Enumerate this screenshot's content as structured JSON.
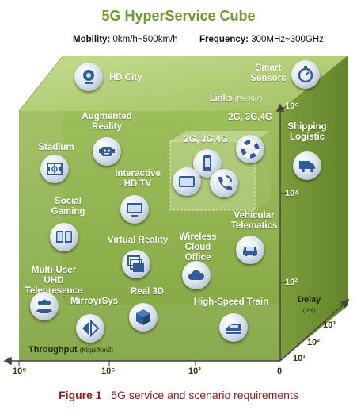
{
  "title": "5G HyperService Cube",
  "mobility": {
    "label": "Mobility:",
    "value": "0km/h~500km/h"
  },
  "frequency": {
    "label": "Frequency:",
    "value": "300MHz~300GHz"
  },
  "axes": {
    "links": {
      "label": "Links",
      "unit": "(Per Km²)",
      "ticks": [
        "10⁶",
        "10⁴",
        "10²"
      ]
    },
    "throughput": {
      "label": "Throughput",
      "unit": "(Kbps/Km2)",
      "ticks": [
        "10⁹",
        "10⁶",
        "10³",
        "0"
      ]
    },
    "delay": {
      "label": "Delay",
      "unit": "(ms)",
      "ticks": [
        "10³",
        "10²",
        "10¹"
      ]
    }
  },
  "services": [
    {
      "id": "hd-city",
      "label": "HD City",
      "icon": "webcam-icon"
    },
    {
      "id": "smart-sensors",
      "label": "Smart Sensors",
      "icon": "stopwatch-icon"
    },
    {
      "id": "augmented-reality",
      "label": "Augmented Reality",
      "icon": "robot-icon"
    },
    {
      "id": "2g3g4g-top",
      "label": "2G, 3G,4G",
      "icon": "lifebuoy-icon"
    },
    {
      "id": "shipping-logistic",
      "label": "Shipping Logistic",
      "icon": "truck-icon"
    },
    {
      "id": "stadium",
      "label": "Stadium",
      "icon": "field-icon"
    },
    {
      "id": "2g3g4g-inner",
      "label": "2G, 3G,4G",
      "icon": "devices-icon"
    },
    {
      "id": "interactive-hdtv",
      "label": "Interactive HD TV",
      "icon": "tv-icon"
    },
    {
      "id": "social-gaming",
      "label": "Social Gaming",
      "icon": "tablets-icon"
    },
    {
      "id": "vehicular-telematics",
      "label": "Vehicular Telematics",
      "icon": "car-icon"
    },
    {
      "id": "virtual-reality",
      "label": "Virtual Reality",
      "icon": "layers-icon"
    },
    {
      "id": "wireless-cloud-office",
      "label": "Wireless Cloud Office",
      "icon": "cloud-icon"
    },
    {
      "id": "uhd-telepresence",
      "label": "Multi-User UHD Telepresence",
      "icon": "people-icon"
    },
    {
      "id": "real-3d",
      "label": "Real 3D",
      "icon": "cube-icon"
    },
    {
      "id": "mirroyrsys",
      "label": "MirroyrSys",
      "icon": "mirror-icon"
    },
    {
      "id": "high-speed-train",
      "label": "High-Speed Train",
      "icon": "train-icon"
    }
  ],
  "caption": {
    "figure": "Figure 1",
    "text": "5G service and scenario requirements"
  },
  "colors": {
    "cube_front": "#8fb34f",
    "cube_top": "#b3cf78",
    "cube_side": "#739535",
    "title": "#6d9a2f",
    "caption": "#8b1f1f"
  }
}
